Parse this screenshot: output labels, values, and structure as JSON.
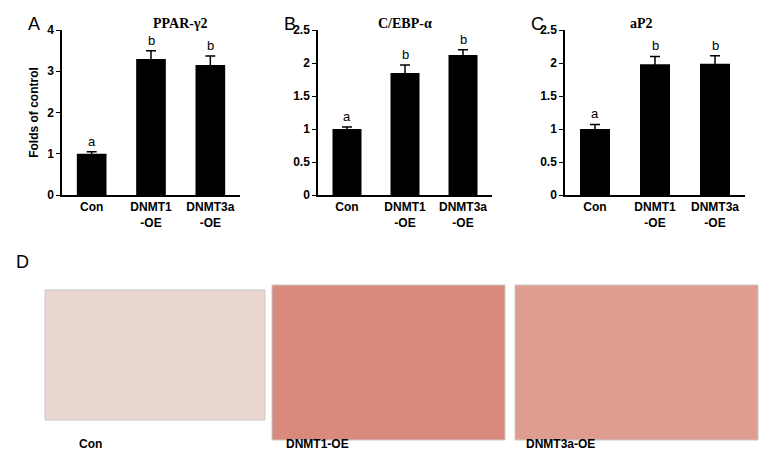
{
  "chart_data": [
    {
      "type": "bar",
      "panel": "A",
      "title": "PPAR-γ2",
      "y_label": "Folds of control",
      "categories": [
        "Con",
        "DNMT1-OE",
        "DNMT3a-OE"
      ],
      "values": [
        1,
        3.3,
        3.15
      ],
      "errors": [
        0.05,
        0.2,
        0.22
      ],
      "significance": [
        "a",
        "b",
        "b"
      ],
      "color": "#000000",
      "ylim": [
        0,
        4
      ],
      "yticks": [
        0,
        1,
        2,
        3,
        4
      ]
    },
    {
      "type": "bar",
      "panel": "B",
      "title": "C/EBP-α",
      "categories": [
        "Con",
        "DNMT1-OE",
        "DNMT3a-OE"
      ],
      "values": [
        1,
        1.85,
        2.12
      ],
      "errors": [
        0.03,
        0.12,
        0.08
      ],
      "significance": [
        "a",
        "b",
        "b"
      ],
      "color": "#000000",
      "ylim": [
        0,
        2.5
      ],
      "yticks": [
        0,
        0.5,
        1,
        1.5,
        2,
        2.5
      ]
    },
    {
      "type": "bar",
      "panel": "C",
      "title": "aP2",
      "categories": [
        "Con",
        "DNMT1-OE",
        "DNMT3a-OE"
      ],
      "values": [
        1,
        1.98,
        1.99
      ],
      "errors": [
        0.07,
        0.12,
        0.12
      ],
      "significance": [
        "a",
        "b",
        "b"
      ],
      "color": "#000000",
      "ylim": [
        0,
        2.5
      ],
      "yticks": [
        0,
        0.5,
        1,
        1.5,
        2,
        2.5
      ]
    }
  ],
  "panel_D": {
    "panel": "D",
    "images": [
      "Con",
      "DNMT1-OE",
      "DNMT3a-OE"
    ]
  }
}
